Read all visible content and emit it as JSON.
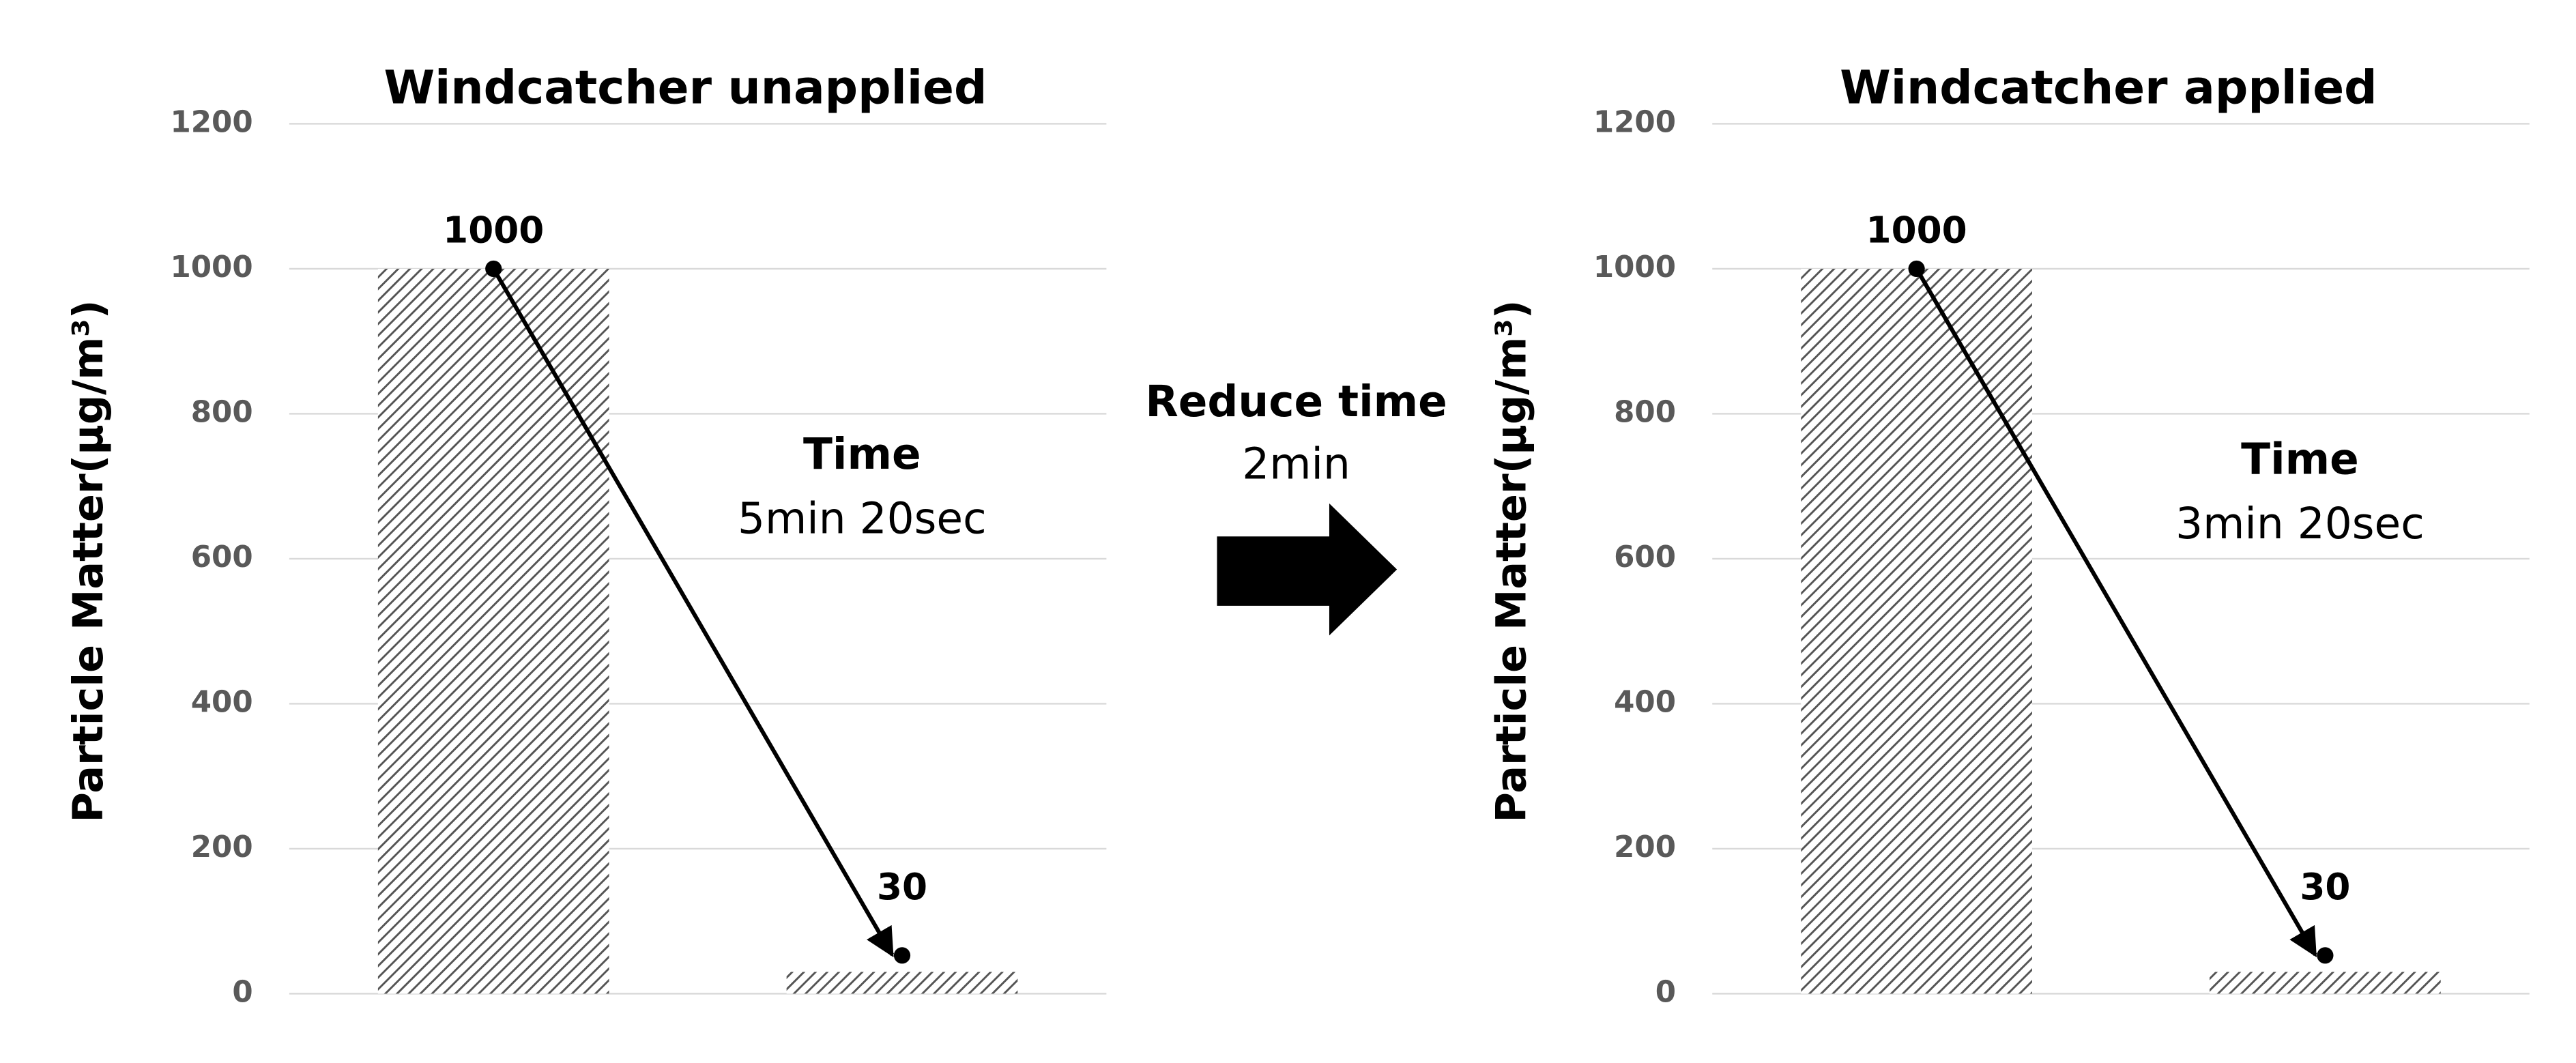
{
  "chart_data": [
    {
      "type": "bar",
      "title": "Windcatcher unapplied",
      "y_label": "Particle Matter(μg/m³)",
      "categories": [
        null,
        null
      ],
      "values": [
        1000,
        30
      ],
      "color": "#555555",
      "ylim": [
        0,
        1200
      ],
      "yticks": [
        0,
        200,
        400,
        600,
        800,
        1000,
        1200
      ],
      "grid": true,
      "annotations": [
        "Time",
        "5min 20sec"
      ]
    },
    {
      "type": "bar",
      "title": "Windcatcher applied",
      "y_label": "Particle Matter(μg/m³)",
      "categories": [
        null,
        null
      ],
      "values": [
        1000,
        30
      ],
      "color": "#555555",
      "ylim": [
        0,
        1200
      ],
      "yticks": [
        0,
        200,
        400,
        600,
        800,
        1000,
        1200
      ],
      "grid": true,
      "annotations": [
        "Time",
        "3min 20sec"
      ]
    }
  ],
  "transition": {
    "title": "Reduce time",
    "detail": "2min"
  }
}
